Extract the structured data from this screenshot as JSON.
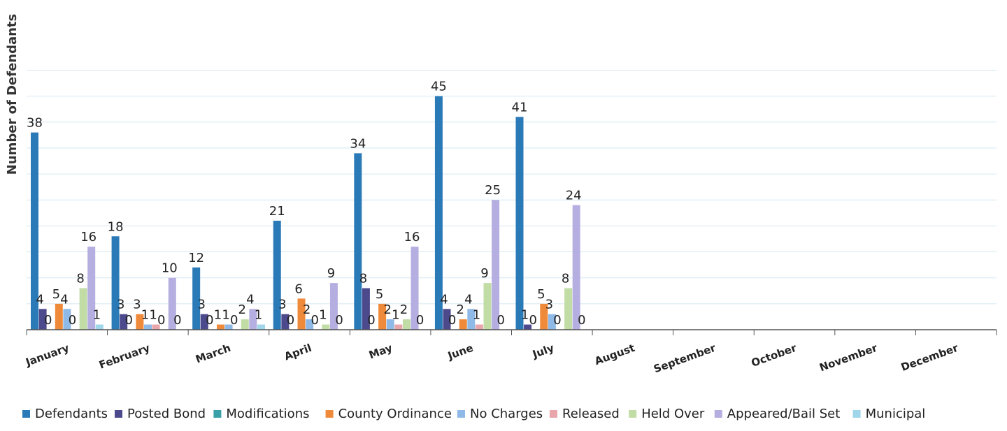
{
  "chart_data": {
    "type": "bar",
    "title": "",
    "ylabel": "Number of Defendants",
    "xlabel": "",
    "ylim": [
      0,
      50
    ],
    "grid": true,
    "legend_position": "bottom",
    "categories": [
      "January",
      "February",
      "March",
      "April",
      "May",
      "June",
      "July",
      "August",
      "September",
      "October",
      "November",
      "December"
    ],
    "series": [
      {
        "name": "Defendants",
        "color": "#2a7ab8",
        "values": [
          38,
          18,
          12,
          21,
          34,
          45,
          41,
          null,
          null,
          null,
          null,
          null
        ]
      },
      {
        "name": "Posted Bond",
        "color": "#4c4a8c",
        "values": [
          4,
          3,
          3,
          3,
          8,
          4,
          1,
          null,
          null,
          null,
          null,
          null
        ]
      },
      {
        "name": "Modifications",
        "color": "#3aa0a8",
        "values": [
          0,
          0,
          0,
          0,
          0,
          0,
          0,
          null,
          null,
          null,
          null,
          null
        ]
      },
      {
        "name": "County Ordinance",
        "color": "#ef8a3a",
        "values": [
          5,
          3,
          1,
          6,
          5,
          2,
          5,
          null,
          null,
          null,
          null,
          null
        ]
      },
      {
        "name": "No Charges",
        "color": "#8fb9e6",
        "values": [
          4,
          1,
          1,
          2,
          2,
          4,
          3,
          null,
          null,
          null,
          null,
          null
        ]
      },
      {
        "name": "Released",
        "color": "#e8a6aa",
        "values": [
          0,
          1,
          0,
          0,
          1,
          1,
          0,
          null,
          null,
          null,
          null,
          null
        ]
      },
      {
        "name": "Held Over",
        "color": "#c2dca6",
        "values": [
          8,
          0,
          2,
          1,
          2,
          9,
          8,
          null,
          null,
          null,
          null,
          null
        ]
      },
      {
        "name": "Appeared/Bail Set",
        "color": "#b5aee0",
        "values": [
          16,
          10,
          4,
          9,
          16,
          25,
          24,
          null,
          null,
          null,
          null,
          null
        ]
      },
      {
        "name": "Municipal",
        "color": "#9fd6ea",
        "values": [
          1,
          0,
          1,
          0,
          0,
          0,
          0,
          null,
          null,
          null,
          null,
          null
        ]
      }
    ],
    "data_labels": [
      {
        "category": "January",
        "texts": [
          "38",
          "4",
          "0",
          "5",
          "4",
          "0",
          "8",
          "16",
          "1"
        ]
      },
      {
        "category": "February",
        "texts": [
          "18",
          "3",
          "0",
          "3",
          "1",
          "1",
          "0",
          "10",
          "0"
        ]
      },
      {
        "category": "March",
        "texts": [
          "12",
          "3",
          "0",
          "1",
          "1",
          "0",
          "2",
          "4",
          "1"
        ]
      },
      {
        "category": "April",
        "texts": [
          "21",
          "3",
          "0",
          "6",
          "2",
          "0",
          "1",
          "9",
          "0"
        ]
      },
      {
        "category": "May",
        "texts": [
          "34",
          "8",
          "0",
          "5",
          "2",
          "1",
          "2",
          "16",
          "0"
        ]
      },
      {
        "category": "June",
        "texts": [
          "45",
          "4",
          "0",
          "2",
          "4",
          "1",
          "9",
          "25",
          "0"
        ]
      },
      {
        "category": "July",
        "texts": [
          "41",
          "1",
          "0",
          "5",
          "3",
          "0",
          "8",
          "24",
          "0"
        ]
      }
    ]
  }
}
